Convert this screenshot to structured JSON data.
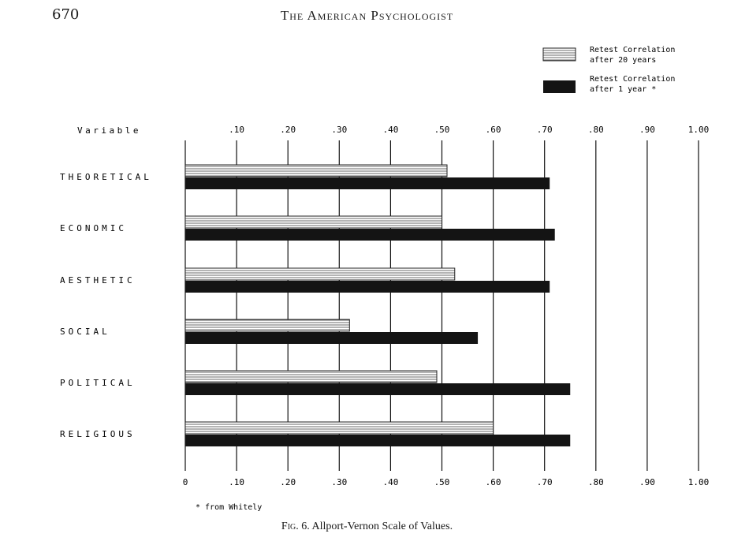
{
  "page": {
    "page_number": "670",
    "running_head": "The American Psychologist",
    "figure_label": "Fig. 6.",
    "caption": "Allport-Vernon Scale of Values."
  },
  "chart_data": {
    "type": "bar",
    "orientation": "horizontal",
    "row_header": "Variable",
    "categories": [
      "THEORETICAL",
      "ECONOMIC",
      "AESTHETIC",
      "SOCIAL",
      "POLITICAL",
      "RELIGIOUS"
    ],
    "series": [
      {
        "name": "Retest Correlation after 20 years",
        "legend_lines": [
          "Retest Correlation",
          "after 20 years"
        ],
        "pattern": "horizontal-lines",
        "values": [
          0.51,
          0.5,
          0.525,
          0.32,
          0.49,
          0.6
        ]
      },
      {
        "name": "Retest Correlation after 1 year *",
        "legend_lines": [
          "Retest Correlation",
          "after 1 year *"
        ],
        "pattern": "solid-black",
        "values": [
          0.71,
          0.72,
          0.71,
          0.57,
          0.75,
          0.75
        ]
      }
    ],
    "xlim": [
      0,
      1.0
    ],
    "top_tick_labels": [
      ".10",
      ".20",
      ".30",
      ".40",
      ".50",
      ".60",
      ".70",
      ".80",
      ".90",
      "1.00"
    ],
    "bottom_tick_labels": [
      "0",
      ".10",
      ".20",
      ".30",
      ".40",
      ".50",
      ".60",
      ".70",
      ".80",
      ".90",
      "1.00"
    ],
    "grid": "vertical lines at each .10",
    "legend_position": "top-right",
    "footnote": "* from Whitely"
  }
}
